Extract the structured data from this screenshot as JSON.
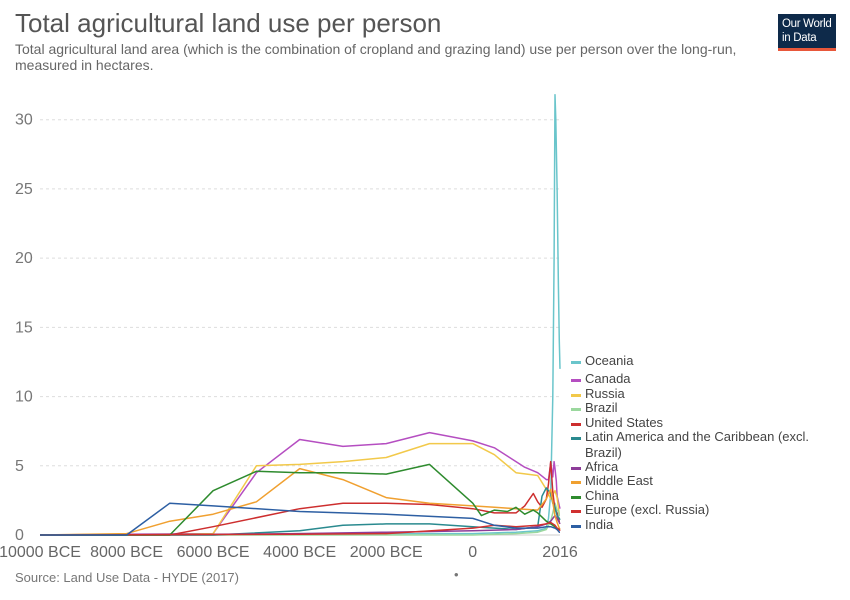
{
  "header": {
    "title": "Total agricultural land use per person",
    "subtitle": "Total agricultural land area (which is the combination of cropland and grazing land) use per person over the long-run, measured in hectares."
  },
  "logo": {
    "line1": "Our World",
    "line2": "in Data",
    "bg_color": "#0e2a4a",
    "accent_color": "#e8573a"
  },
  "footer": {
    "source": "Source: Land Use Data - HYDE (2017)",
    "dot": "•"
  },
  "chart_data": {
    "type": "line",
    "title": "Total agricultural land use per person",
    "xlabel": "",
    "ylabel": "",
    "xlim": [
      -10000,
      2016
    ],
    "ylim": [
      0,
      32
    ],
    "grid": true,
    "legend_position": "right",
    "x_ticks": [
      {
        "value": -10000,
        "label": "10000 BCE"
      },
      {
        "value": -8000,
        "label": "8000 BCE"
      },
      {
        "value": -6000,
        "label": "6000 BCE"
      },
      {
        "value": -4000,
        "label": "4000 BCE"
      },
      {
        "value": -2000,
        "label": "2000 BCE"
      },
      {
        "value": 0,
        "label": "0"
      },
      {
        "value": 2016,
        "label": "2016"
      }
    ],
    "y_ticks": [
      0,
      5,
      10,
      15,
      20,
      25,
      30
    ],
    "series": [
      {
        "name": "Oceania",
        "color": "#6ac5cb",
        "x": [
          -10000,
          -6000,
          -4000,
          -2000,
          0,
          1000,
          1500,
          1700,
          1750,
          1800,
          1850,
          1880,
          1900,
          1920,
          1950,
          1980,
          2000,
          2016
        ],
        "y": [
          0,
          0,
          0.1,
          0.1,
          0.1,
          0.2,
          0.3,
          0.5,
          1.2,
          3,
          10,
          20,
          31.8,
          30,
          25,
          18,
          14,
          12
        ]
      },
      {
        "name": "Canada",
        "color": "#b54ec1",
        "x": [
          -10000,
          -6000,
          -5000,
          -4000,
          -3000,
          -2000,
          -1000,
          0,
          500,
          1000,
          1200,
          1500,
          1700,
          1750,
          1800,
          1850,
          1880,
          1900,
          1930,
          1950,
          1980,
          2000,
          2016
        ],
        "y": [
          0,
          0.1,
          4.5,
          6.9,
          6.4,
          6.6,
          7.4,
          6.8,
          6.3,
          5.3,
          4.9,
          4.5,
          4.0,
          4.0,
          5.2,
          4.2,
          5.3,
          4.8,
          3.9,
          2.8,
          2.4,
          2.1,
          1.9
        ]
      },
      {
        "name": "Russia",
        "color": "#f2c94a",
        "x": [
          -10000,
          -8000,
          -6000,
          -5000,
          -4000,
          -3000,
          -2000,
          -1000,
          0,
          500,
          1000,
          1500,
          1700,
          1800,
          1900,
          1950,
          2000,
          2016
        ],
        "y": [
          0,
          0,
          0.1,
          5.0,
          5.1,
          5.3,
          5.6,
          6.6,
          6.6,
          5.8,
          4.5,
          4.3,
          3.3,
          2.6,
          3.2,
          2.7,
          1.5,
          1.5
        ]
      },
      {
        "name": "Brazil",
        "color": "#9bd89e",
        "x": [
          -10000,
          0,
          1000,
          1500,
          1700,
          1800,
          1850,
          1900,
          1950,
          1980,
          2000,
          2016
        ],
        "y": [
          0,
          0,
          0.1,
          0.2,
          0.4,
          1.0,
          1.6,
          2.3,
          1.8,
          1.7,
          1.4,
          1.4
        ]
      },
      {
        "name": "United States",
        "color": "#cd2e2e",
        "x": [
          -10000,
          -7000,
          -6000,
          -4000,
          -3000,
          -2000,
          -1000,
          0,
          500,
          1000,
          1200,
          1400,
          1500,
          1600,
          1700,
          1750,
          1800,
          1850,
          1900,
          1950,
          1980,
          2000,
          2016
        ],
        "y": [
          0,
          0,
          0.6,
          1.9,
          2.3,
          2.3,
          2.2,
          1.9,
          1.6,
          1.6,
          2.1,
          3.0,
          2.4,
          2.0,
          2.6,
          3.7,
          5.3,
          3.1,
          1.8,
          1.6,
          1.1,
          1.0,
          1.0
        ]
      },
      {
        "name": "Latin America and the Caribbean (excl. Brazil)",
        "color": "#2a8a8f",
        "x": [
          -10000,
          -6000,
          -4000,
          -3000,
          -2000,
          -1000,
          0,
          500,
          1000,
          1500,
          1600,
          1700,
          1800,
          1850,
          1900,
          1950,
          2000,
          2016
        ],
        "y": [
          0,
          0,
          0.3,
          0.7,
          0.8,
          0.8,
          0.6,
          0.5,
          0.4,
          0.6,
          2.8,
          3.4,
          3.0,
          2.3,
          2.0,
          1.4,
          1.2,
          1.1
        ]
      },
      {
        "name": "Africa",
        "color": "#8d3d99",
        "x": [
          -10000,
          -6000,
          -4000,
          -2000,
          0,
          1000,
          1500,
          1700,
          1800,
          1850,
          1900,
          1950,
          2000,
          2016
        ],
        "y": [
          0,
          0.05,
          0.1,
          0.2,
          0.3,
          0.4,
          0.6,
          0.8,
          1.0,
          1.2,
          1.4,
          1.2,
          0.9,
          0.8
        ]
      },
      {
        "name": "Middle East",
        "color": "#f0a030",
        "x": [
          -10000,
          -8000,
          -7000,
          -6000,
          -5000,
          -4000,
          -3000,
          -2000,
          -1000,
          0,
          500,
          1000,
          1500,
          1700,
          1800,
          1900,
          1950,
          2000,
          2016
        ],
        "y": [
          0,
          0.1,
          1.0,
          1.5,
          2.4,
          4.8,
          4.0,
          2.7,
          2.3,
          2.1,
          2.0,
          1.9,
          1.8,
          2.6,
          3.3,
          1.4,
          0.9,
          0.5,
          0.4
        ]
      },
      {
        "name": "China",
        "color": "#2e8b2e",
        "x": [
          -10000,
          -7000,
          -6000,
          -5000,
          -4000,
          -3000,
          -2000,
          -1000,
          0,
          200,
          500,
          800,
          1000,
          1200,
          1400,
          1500,
          1700,
          1800,
          1900,
          1950,
          2000,
          2016
        ],
        "y": [
          0,
          0,
          3.2,
          4.6,
          4.5,
          4.5,
          4.4,
          5.1,
          2.3,
          1.4,
          1.8,
          1.7,
          2.0,
          1.5,
          1.8,
          1.6,
          1.0,
          0.8,
          0.6,
          0.4,
          0.4,
          0.4
        ]
      },
      {
        "name": "Europe (excl. Russia)",
        "color": "#d03030",
        "x": [
          -10000,
          -4000,
          -2000,
          0,
          500,
          1000,
          1500,
          1700,
          1800,
          1900,
          1950,
          2000,
          2016
        ],
        "y": [
          0,
          0.05,
          0.1,
          0.5,
          0.7,
          0.6,
          0.7,
          0.8,
          0.9,
          0.7,
          0.5,
          0.4,
          0.3
        ]
      },
      {
        "name": "India",
        "color": "#2d5fa3",
        "x": [
          -10000,
          -8000,
          -7000,
          -6000,
          -4000,
          -2000,
          0,
          500,
          1000,
          1500,
          1700,
          1800,
          1900,
          1950,
          2000,
          2016
        ],
        "y": [
          0,
          0,
          2.3,
          2.1,
          1.7,
          1.5,
          1.2,
          0.7,
          0.5,
          0.5,
          0.6,
          0.6,
          0.5,
          0.4,
          0.2,
          0.2
        ]
      }
    ]
  }
}
